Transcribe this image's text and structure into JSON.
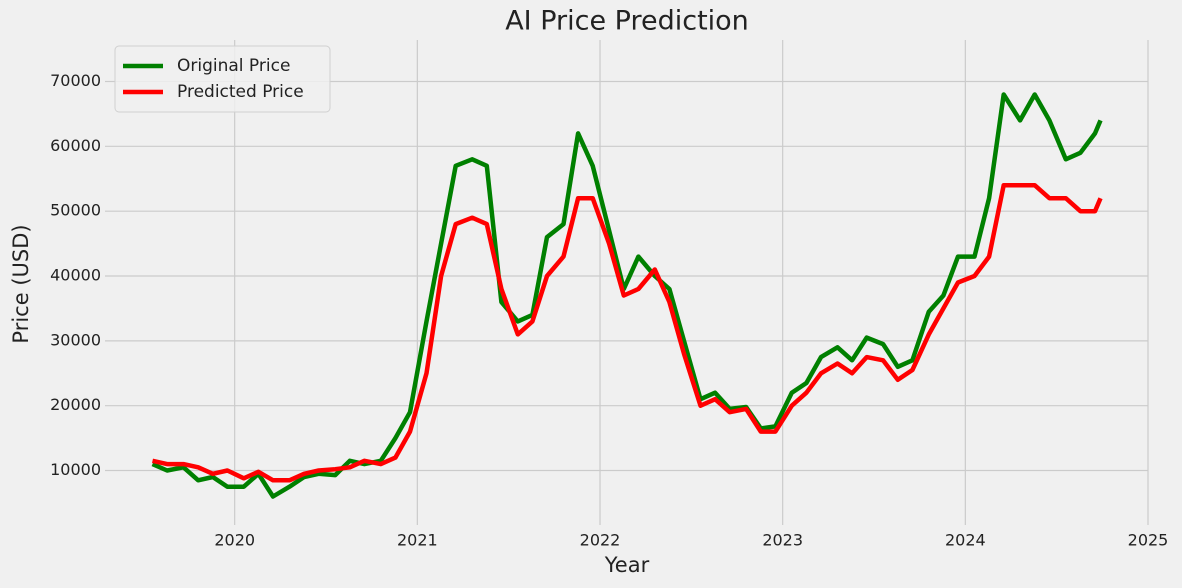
{
  "chart_data": {
    "type": "line",
    "title": "AI Price Prediction",
    "xlabel": "Year",
    "ylabel": "Price (USD)",
    "x": [
      2019.55,
      2019.63,
      2019.72,
      2019.8,
      2019.88,
      2019.96,
      2020.05,
      2020.13,
      2020.21,
      2020.3,
      2020.38,
      2020.46,
      2020.55,
      2020.63,
      2020.71,
      2020.8,
      2020.88,
      2020.96,
      2021.05,
      2021.13,
      2021.21,
      2021.3,
      2021.38,
      2021.46,
      2021.55,
      2021.63,
      2021.71,
      2021.8,
      2021.88,
      2021.96,
      2022.05,
      2022.13,
      2022.21,
      2022.3,
      2022.38,
      2022.46,
      2022.55,
      2022.63,
      2022.71,
      2022.8,
      2022.88,
      2022.96,
      2023.05,
      2023.13,
      2023.21,
      2023.3,
      2023.38,
      2023.46,
      2023.55,
      2023.63,
      2023.71,
      2023.8,
      2023.88,
      2023.96,
      2024.05,
      2024.13,
      2024.21,
      2024.3,
      2024.38,
      2024.46,
      2024.55,
      2024.63,
      2024.71,
      2024.74
    ],
    "series": [
      {
        "name": "Original Price",
        "color": "#008000",
        "values": [
          11000,
          10000,
          10500,
          8500,
          9000,
          7500,
          7500,
          9500,
          6000,
          7500,
          9000,
          9500,
          9300,
          11500,
          11000,
          11500,
          15000,
          19000,
          33000,
          45000,
          57000,
          58000,
          57000,
          36000,
          33000,
          34000,
          46000,
          48000,
          62000,
          57000,
          47000,
          38000,
          43000,
          40000,
          38000,
          30000,
          21000,
          22000,
          19500,
          19800,
          16500,
          16800,
          22000,
          23500,
          27500,
          29000,
          27000,
          30500,
          29500,
          26000,
          27000,
          34500,
          37000,
          43000,
          43000,
          52000,
          68000,
          64000,
          68000,
          64000,
          58000,
          59000,
          62000,
          64000
        ]
      },
      {
        "name": "Predicted Price",
        "color": "#ff0000",
        "values": [
          11500,
          11000,
          11000,
          10500,
          9500,
          10000,
          8800,
          9800,
          8500,
          8500,
          9500,
          10000,
          10200,
          10500,
          11500,
          11000,
          12000,
          16000,
          25000,
          40000,
          48000,
          49000,
          48000,
          38000,
          31000,
          33000,
          40000,
          43000,
          52000,
          52000,
          45000,
          37000,
          38000,
          41000,
          36000,
          28000,
          20000,
          21000,
          19000,
          19500,
          16000,
          16000,
          20000,
          22000,
          25000,
          26500,
          25000,
          27500,
          27000,
          24000,
          25500,
          31000,
          35000,
          39000,
          40000,
          43000,
          54000,
          54000,
          54000,
          52000,
          52000,
          50000,
          50000,
          52000
        ]
      }
    ],
    "xlim": [
      2019.29,
      2025.0
    ],
    "xticks": [
      2020,
      2021,
      2022,
      2023,
      2024,
      2025
    ],
    "ylim": [
      1600,
      76400
    ],
    "yticks": [
      10000,
      20000,
      30000,
      40000,
      50000,
      60000,
      70000
    ],
    "grid": true,
    "legend": "upper left"
  }
}
